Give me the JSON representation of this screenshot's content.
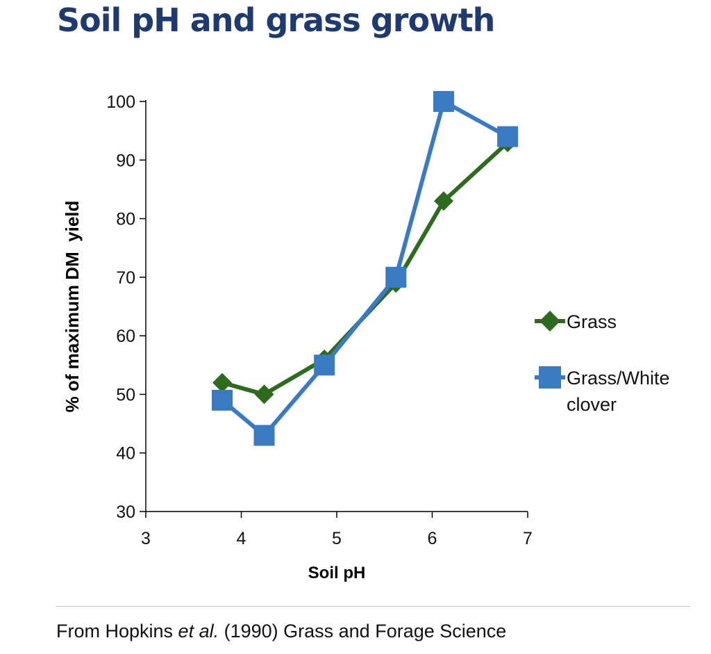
{
  "slide": {
    "title": "Soil pH and grass growth",
    "source_prefix": "From Hopkins ",
    "source_italic": "et al.",
    "source_suffix": " (1990) Grass and Forage Science"
  },
  "chart_data": {
    "type": "line",
    "xlabel": "Soil pH",
    "ylabel": "% of maximum DM  yield",
    "xlim": [
      3,
      7
    ],
    "ylim": [
      30,
      100
    ],
    "xticks": [
      3,
      4,
      5,
      6,
      7
    ],
    "yticks": [
      30,
      40,
      50,
      60,
      70,
      80,
      90,
      100
    ],
    "grid": false,
    "legend_position": "right",
    "series": [
      {
        "name": "Grass",
        "color": "#2e6b1f",
        "marker": "diamond",
        "x": [
          3.8,
          4.24,
          4.87,
          5.62,
          6.12,
          6.79
        ],
        "y": [
          52,
          50,
          56,
          69,
          83,
          93
        ]
      },
      {
        "name_lines": [
          "Grass/White",
          "clover"
        ],
        "color": "#3a7ac4",
        "marker": "square",
        "x": [
          3.8,
          4.24,
          4.87,
          5.62,
          6.12,
          6.79
        ],
        "y": [
          49,
          43,
          55,
          70,
          100,
          94
        ]
      }
    ]
  }
}
